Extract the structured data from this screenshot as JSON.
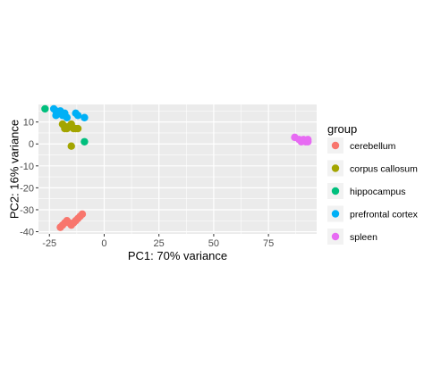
{
  "chart_data": {
    "type": "scatter",
    "xlabel": "PC1: 70% variance",
    "ylabel": "PC2: 16% variance",
    "xlim": [
      -30,
      97
    ],
    "ylim": [
      -41,
      18
    ],
    "x_ticks": [
      -25,
      0,
      25,
      50,
      75
    ],
    "x_tick_labels": [
      "-25",
      "0",
      "25",
      "50",
      "75"
    ],
    "y_ticks": [
      -40,
      -30,
      -20,
      -10,
      0,
      10
    ],
    "y_tick_labels": [
      "-40",
      "-30",
      "-20",
      "-10",
      "0",
      "10"
    ],
    "grid": true,
    "panel_background": "#ebebeb",
    "legend": {
      "title": "group",
      "position": "right"
    },
    "series": [
      {
        "name": "cerebellum",
        "color": "#F8766D",
        "points": [
          [
            -20,
            -38
          ],
          [
            -19,
            -37
          ],
          [
            -18,
            -36
          ],
          [
            -17,
            -35
          ],
          [
            -16,
            -36
          ],
          [
            -15,
            -37
          ],
          [
            -14,
            -36
          ],
          [
            -13,
            -35
          ],
          [
            -12,
            -34
          ],
          [
            -11,
            -33
          ],
          [
            -10,
            -32
          ]
        ]
      },
      {
        "name": "corpus callosum",
        "color": "#A3A500",
        "points": [
          [
            -19,
            9
          ],
          [
            -18,
            8
          ],
          [
            -17,
            7
          ],
          [
            -16,
            8
          ],
          [
            -15,
            9
          ],
          [
            -14,
            7
          ],
          [
            -13,
            7
          ],
          [
            -12,
            7
          ],
          [
            -18,
            7
          ],
          [
            -15,
            -1
          ]
        ]
      },
      {
        "name": "hippocampus",
        "color": "#00BF7D",
        "points": [
          [
            -27,
            16
          ],
          [
            -9,
            1
          ]
        ]
      },
      {
        "name": "prefrontal cortex",
        "color": "#00B0F6",
        "points": [
          [
            -23,
            16
          ],
          [
            -22,
            15
          ],
          [
            -21,
            14
          ],
          [
            -20,
            15
          ],
          [
            -19,
            13
          ],
          [
            -18,
            14
          ],
          [
            -17,
            12
          ],
          [
            -13,
            14
          ],
          [
            -12,
            13
          ],
          [
            -9,
            12
          ],
          [
            -22,
            13
          ]
        ]
      },
      {
        "name": "spleen",
        "color": "#E76BF3",
        "points": [
          [
            87,
            3
          ],
          [
            89,
            2
          ],
          [
            90,
            1
          ],
          [
            91,
            2
          ],
          [
            92,
            1
          ],
          [
            93,
            2
          ],
          [
            93,
            1
          ]
        ]
      }
    ]
  }
}
